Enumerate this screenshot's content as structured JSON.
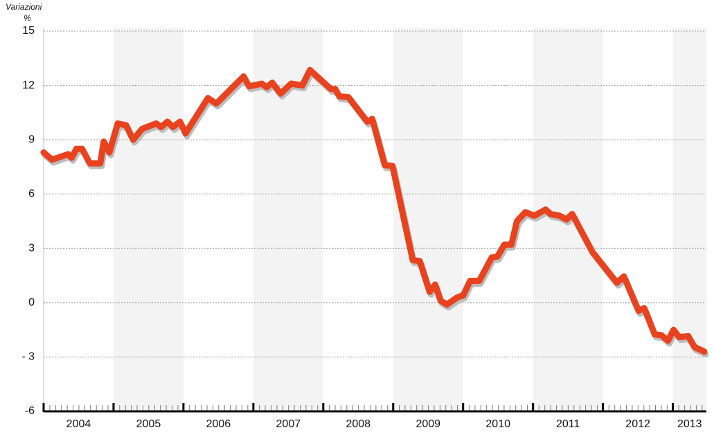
{
  "chart_data": {
    "type": "line",
    "y_label": "Variazioni",
    "y_unit": "%",
    "x": [
      2004.0,
      2004.12,
      2004.27,
      2004.35,
      2004.4,
      2004.47,
      2004.55,
      2004.66,
      2004.81,
      2004.86,
      2004.94,
      2005.06,
      2005.18,
      2005.28,
      2005.41,
      2005.61,
      2005.68,
      2005.77,
      2005.85,
      2005.95,
      2006.03,
      2006.35,
      2006.47,
      2006.86,
      2006.94,
      2007.12,
      2007.19,
      2007.27,
      2007.39,
      2007.54,
      2007.7,
      2007.81,
      2008.11,
      2008.17,
      2008.23,
      2008.36,
      2008.63,
      2008.7,
      2008.88,
      2008.99,
      2009.28,
      2009.38,
      2009.52,
      2009.6,
      2009.68,
      2009.77,
      2009.92,
      2010.0,
      2010.1,
      2010.23,
      2010.41,
      2010.49,
      2010.59,
      2010.69,
      2010.77,
      2010.89,
      2011.02,
      2011.18,
      2011.25,
      2011.38,
      2011.48,
      2011.56,
      2011.85,
      2012.2,
      2012.3,
      2012.51,
      2012.59,
      2012.74,
      2012.84,
      2012.93,
      2013.01,
      2013.09,
      2013.22,
      2013.31,
      2013.45
    ],
    "series": [
      {
        "color": "#e8431e",
        "shadow_color": "#bdbdbd",
        "values": [
          8.3,
          7.9,
          8.1,
          8.2,
          8.0,
          8.5,
          8.5,
          7.7,
          7.7,
          8.9,
          8.3,
          9.9,
          9.8,
          9.0,
          9.6,
          9.9,
          9.7,
          10.0,
          9.7,
          10.0,
          9.35,
          11.3,
          11.0,
          12.5,
          11.95,
          12.1,
          11.9,
          12.15,
          11.55,
          12.1,
          12.0,
          12.85,
          11.8,
          11.8,
          11.4,
          11.35,
          10.0,
          10.15,
          7.6,
          7.55,
          2.35,
          2.3,
          0.6,
          1.0,
          0.1,
          -0.1,
          0.3,
          0.4,
          1.2,
          1.2,
          2.5,
          2.55,
          3.2,
          3.2,
          4.5,
          5.0,
          4.8,
          5.15,
          4.9,
          4.8,
          4.6,
          4.9,
          2.8,
          1.1,
          1.45,
          -0.45,
          -0.3,
          -1.75,
          -1.8,
          -2.1,
          -1.5,
          -1.9,
          -1.85,
          -2.45,
          -2.7
        ]
      }
    ],
    "xlim": [
      2004,
      2013.45
    ],
    "xticks": [
      2004,
      2005,
      2006,
      2007,
      2008,
      2009,
      2010,
      2011,
      2012,
      2013
    ],
    "ylim": [
      -6,
      15
    ],
    "yticks": [
      -6,
      {
        "value": -3,
        "label": "- 3"
      },
      0,
      3,
      6,
      9,
      12,
      15
    ],
    "grid": true,
    "band_color": "#f3f3f3"
  }
}
